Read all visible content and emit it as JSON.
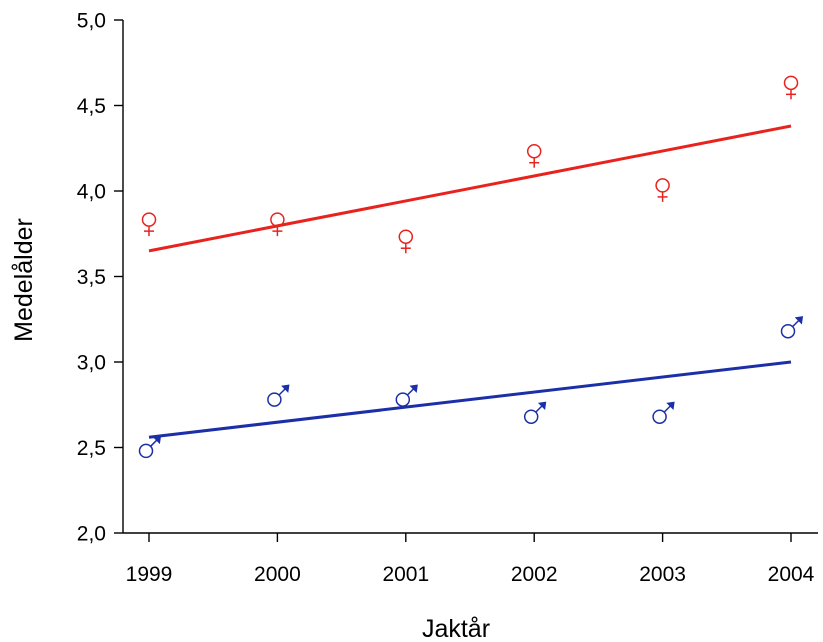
{
  "chart_data": {
    "type": "scatter",
    "title": "",
    "xlabel": "Jaktår",
    "ylabel": "Medelålder",
    "x": [
      1999,
      2000,
      2001,
      2002,
      2003,
      2004
    ],
    "x_tick_labels": [
      "1999",
      "2000",
      "2001",
      "2002",
      "2003",
      "2004"
    ],
    "xlim": [
      1998.8,
      2004.2
    ],
    "ylim": [
      2.0,
      5.0
    ],
    "y_ticks": [
      2.0,
      2.5,
      3.0,
      3.5,
      4.0,
      4.5,
      5.0
    ],
    "y_tick_labels": [
      "2,0",
      "2,5",
      "3,0",
      "3,5",
      "4,0",
      "4,5",
      "5,0"
    ],
    "grid": false,
    "legend": "none",
    "series": [
      {
        "marker": "female-symbol",
        "color": "#e8231e",
        "values": [
          3.78,
          3.78,
          3.68,
          4.18,
          3.98,
          4.58
        ],
        "trendline": {
          "start": [
            1999,
            3.65
          ],
          "end": [
            2004,
            4.38
          ]
        }
      },
      {
        "marker": "male-symbol",
        "color": "#1b2fa8",
        "values": [
          2.48,
          2.78,
          2.78,
          2.68,
          2.68,
          3.18
        ],
        "trendline": {
          "start": [
            1999,
            2.56
          ],
          "end": [
            2004,
            3.0
          ]
        }
      }
    ]
  }
}
